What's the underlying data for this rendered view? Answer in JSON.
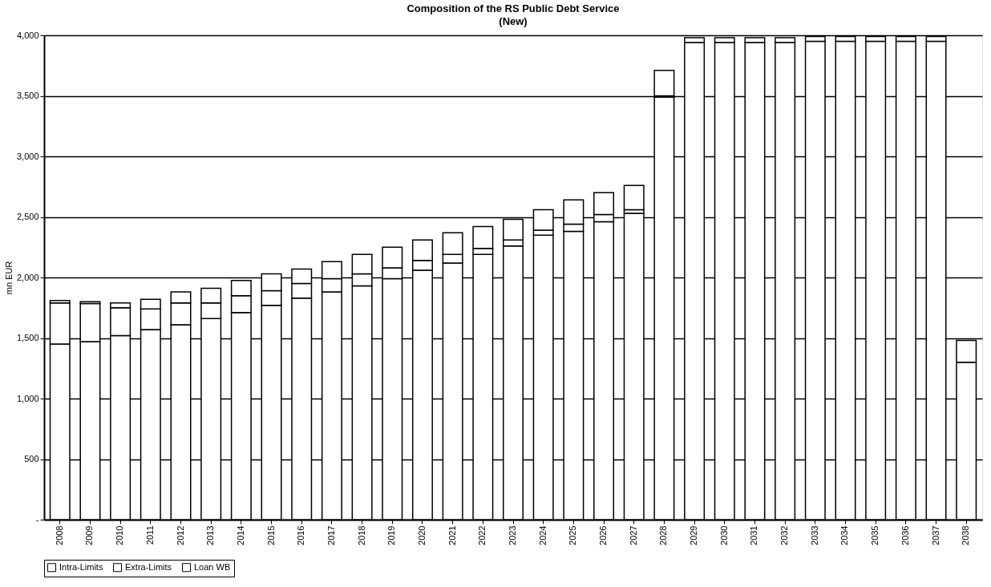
{
  "chart_data": {
    "type": "bar",
    "title": "Composition of the RS Public Debt Service",
    "subtitle": "(New)",
    "ylabel": "mn EUR",
    "categories": [
      "2008",
      "2009",
      "2010",
      "2011",
      "2012",
      "2013",
      "2014",
      "2015",
      "2016",
      "2017",
      "2018",
      "2019",
      "2020",
      "2021",
      "2022",
      "2023",
      "2024",
      "2025",
      "2026",
      "2027",
      "2028",
      "2029",
      "2030",
      "2031",
      "2032",
      "2033",
      "2034",
      "2035",
      "2036",
      "2037",
      "2038"
    ],
    "stacked": true,
    "series": [
      {
        "name": "Intra-Limits",
        "color": "#ffffff",
        "values": [
          1450,
          1470,
          1520,
          1570,
          1610,
          1660,
          1710,
          1770,
          1830,
          1880,
          1930,
          1990,
          2060,
          2120,
          2190,
          2260,
          2350,
          2380,
          2460,
          2530,
          3490,
          3940,
          3940,
          3940,
          3940,
          3950,
          3950,
          3950,
          3950,
          3950,
          1300
        ]
      },
      {
        "name": "Extra-Limits",
        "color": "#ffffff",
        "values": [
          340,
          315,
          230,
          170,
          180,
          130,
          140,
          120,
          120,
          110,
          100,
          90,
          80,
          70,
          50,
          50,
          40,
          60,
          60,
          30,
          10,
          null,
          null,
          null,
          null,
          null,
          null,
          null,
          null,
          null,
          null
        ]
      },
      {
        "name": "Loan WB",
        "color": "#ffffff",
        "values": [
          20,
          15,
          40,
          80,
          90,
          120,
          125,
          140,
          120,
          140,
          160,
          170,
          170,
          180,
          180,
          170,
          170,
          200,
          180,
          200,
          210,
          40,
          40,
          40,
          40,
          40,
          40,
          40,
          40,
          40,
          180
        ]
      }
    ],
    "ylim": [
      0,
      4000
    ],
    "yticks": [
      {
        "value": 0,
        "label": "-"
      },
      {
        "value": 500,
        "label": "500"
      },
      {
        "value": 1000,
        "label": "1,000"
      },
      {
        "value": 1500,
        "label": "1,500"
      },
      {
        "value": 2000,
        "label": "2,000"
      },
      {
        "value": 2500,
        "label": "2,500"
      },
      {
        "value": 3000,
        "label": "3,000"
      },
      {
        "value": 3500,
        "label": "3,500"
      },
      {
        "value": 4000,
        "label": "4,000"
      }
    ],
    "grid": "y",
    "legend": "bottom"
  }
}
